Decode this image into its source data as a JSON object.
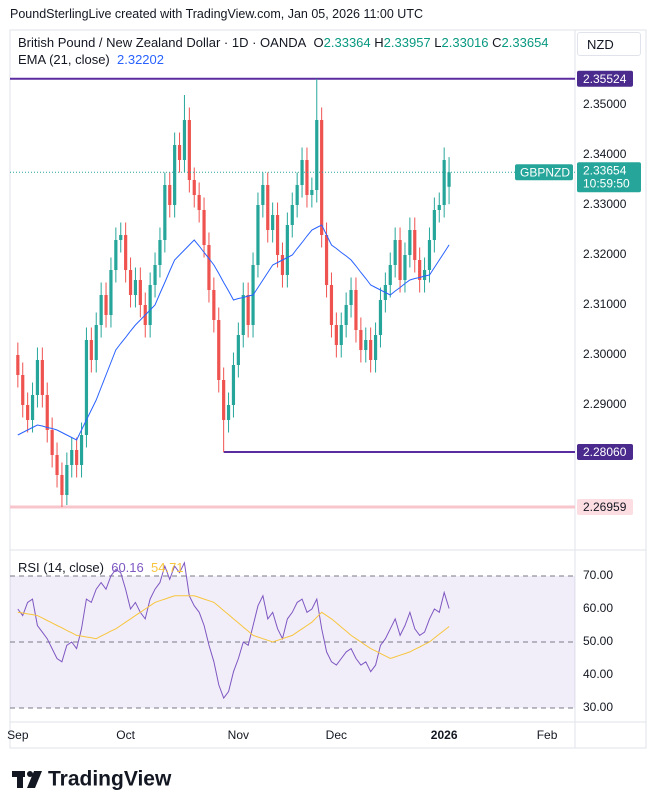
{
  "header": {
    "text": "PoundSterlingLive created with TradingView.com, Jan 05, 2026 11:00 UTC"
  },
  "chart_data": [
    {
      "type": "candlestick",
      "title": "British Pound / New Zealand Dollar · 1D · OANDA",
      "ohlc_labels": [
        "O",
        "H",
        "L",
        "C"
      ],
      "currency": "NZD",
      "symbol": "GBPNZD",
      "countdown": "10:59:50",
      "open": [
        2.3,
        2.296,
        2.29,
        2.287,
        2.292,
        2.299,
        2.292,
        2.285,
        2.28,
        2.276,
        2.272,
        2.278,
        2.281,
        2.278,
        2.284,
        2.303,
        2.299,
        2.306,
        2.312,
        2.308,
        2.317,
        2.323,
        2.324,
        2.317,
        2.312,
        2.315,
        2.31,
        2.306,
        2.314,
        2.318,
        2.323,
        2.334,
        2.33,
        2.342,
        2.339,
        2.347,
        2.335,
        2.332,
        2.329,
        2.322,
        2.313,
        2.307,
        2.295,
        2.287,
        2.29,
        2.298,
        2.304,
        2.312,
        2.306,
        2.318,
        2.33,
        2.334,
        2.325,
        2.328,
        2.32,
        2.316,
        2.326,
        2.33,
        2.334,
        2.339,
        2.332,
        2.333,
        2.347,
        2.324,
        2.314,
        2.306,
        2.302,
        2.306,
        2.31,
        2.313,
        2.305,
        2.301,
        2.303,
        2.299,
        2.304,
        2.311,
        2.314,
        2.318,
        2.323,
        2.315,
        2.32,
        2.325,
        2.319,
        2.315,
        2.317,
        2.323,
        2.329,
        2.33,
        2.33364
      ],
      "high": [
        2.3025,
        2.2985,
        2.2925,
        2.2945,
        2.3015,
        2.3015,
        2.2945,
        2.2875,
        2.2825,
        2.2785,
        2.2805,
        2.2835,
        2.2835,
        2.2865,
        2.3055,
        2.3055,
        2.3085,
        2.3145,
        2.3145,
        2.3195,
        2.3255,
        2.3265,
        2.3265,
        2.3195,
        2.3175,
        2.3175,
        2.3125,
        2.3165,
        2.3205,
        2.3255,
        2.3365,
        2.3365,
        2.3445,
        2.3445,
        2.352,
        2.3495,
        2.3375,
        2.3345,
        2.3315,
        2.3245,
        2.3155,
        2.3095,
        2.2975,
        2.2925,
        2.3005,
        2.3065,
        2.3145,
        2.3145,
        2.3205,
        2.3325,
        2.3365,
        2.3365,
        2.3305,
        2.3305,
        2.3225,
        2.3285,
        2.3325,
        2.3365,
        2.3415,
        2.3415,
        2.3355,
        2.35524,
        2.3495,
        2.3265,
        2.3165,
        2.3085,
        2.3085,
        2.3125,
        2.3155,
        2.3155,
        2.3075,
        2.3055,
        2.3055,
        2.3065,
        2.3135,
        2.3165,
        2.3205,
        2.3255,
        2.3255,
        2.3225,
        2.3275,
        2.3275,
        2.3215,
        2.3195,
        2.3255,
        2.3315,
        2.3325,
        2.3415,
        2.33957
      ],
      "low": [
        2.2935,
        2.2875,
        2.2845,
        2.2845,
        2.2895,
        2.2895,
        2.2825,
        2.2775,
        2.2735,
        2.2696,
        2.27,
        2.2755,
        2.2755,
        2.2755,
        2.2815,
        2.2965,
        2.2965,
        2.3035,
        2.3055,
        2.3055,
        2.3145,
        2.3205,
        2.3145,
        2.3095,
        2.3095,
        2.3075,
        2.3035,
        2.3035,
        2.3115,
        2.3155,
        2.3205,
        2.3275,
        2.3275,
        2.3365,
        2.3365,
        2.3325,
        2.3295,
        2.3265,
        2.3195,
        2.3105,
        2.3045,
        2.2925,
        2.2806,
        2.2845,
        2.2875,
        2.2955,
        2.3015,
        2.3035,
        2.3035,
        2.3155,
        2.3275,
        2.3225,
        2.3225,
        2.3175,
        2.3135,
        2.3135,
        2.3235,
        2.3275,
        2.3315,
        2.3295,
        2.3295,
        2.3305,
        2.3215,
        2.3115,
        2.3035,
        2.2995,
        2.2995,
        2.3035,
        2.3075,
        2.3025,
        2.2985,
        2.2985,
        2.2965,
        2.2965,
        2.3015,
        2.3085,
        2.3115,
        2.3155,
        2.3125,
        2.3125,
        2.3175,
        2.3165,
        2.3125,
        2.3125,
        2.3145,
        2.3205,
        2.3265,
        2.3275,
        2.33016
      ],
      "close": [
        2.296,
        2.29,
        2.287,
        2.292,
        2.299,
        2.292,
        2.285,
        2.28,
        2.276,
        2.272,
        2.278,
        2.281,
        2.278,
        2.284,
        2.303,
        2.299,
        2.306,
        2.312,
        2.308,
        2.317,
        2.323,
        2.324,
        2.317,
        2.312,
        2.315,
        2.31,
        2.306,
        2.314,
        2.318,
        2.323,
        2.334,
        2.33,
        2.342,
        2.339,
        2.347,
        2.335,
        2.332,
        2.329,
        2.322,
        2.313,
        2.307,
        2.295,
        2.287,
        2.29,
        2.298,
        2.304,
        2.312,
        2.306,
        2.318,
        2.33,
        2.334,
        2.325,
        2.328,
        2.32,
        2.316,
        2.326,
        2.33,
        2.334,
        2.339,
        2.332,
        2.333,
        2.347,
        2.324,
        2.314,
        2.306,
        2.302,
        2.306,
        2.31,
        2.313,
        2.305,
        2.301,
        2.303,
        2.299,
        2.304,
        2.311,
        2.314,
        2.318,
        2.323,
        2.315,
        2.32,
        2.325,
        2.319,
        2.315,
        2.317,
        2.323,
        2.329,
        2.33,
        2.339,
        2.33654
      ],
      "up_color": "#26a69a",
      "down_color": "#ef5350",
      "overlay": {
        "name": "EMA (21, close)",
        "color": "#2962ff",
        "values": [
          2.284,
          2.2845,
          2.285,
          2.2855,
          2.286,
          2.2858,
          2.2855,
          2.2853,
          2.285,
          2.2845,
          2.284,
          2.2835,
          2.283,
          2.285,
          2.287,
          2.289,
          2.291,
          2.2935,
          2.296,
          2.2985,
          2.301,
          2.3023,
          2.3035,
          2.3048,
          2.306,
          2.307,
          2.308,
          2.309,
          2.31,
          2.3123,
          2.3145,
          2.3168,
          2.319,
          2.32,
          2.321,
          2.322,
          2.323,
          2.3218,
          2.3205,
          2.3193,
          2.318,
          2.3163,
          2.3145,
          2.3128,
          2.311,
          2.3113,
          2.3115,
          2.3118,
          2.312,
          2.3135,
          2.315,
          2.3165,
          2.318,
          2.3185,
          2.319,
          2.3195,
          2.32,
          2.3213,
          2.3225,
          2.3238,
          2.325,
          2.3255,
          2.326,
          2.324,
          2.322,
          2.3213,
          2.3205,
          2.3198,
          2.319,
          2.3178,
          2.3165,
          2.3153,
          2.314,
          2.3135,
          2.313,
          2.3125,
          2.312,
          2.3128,
          2.3135,
          2.3143,
          2.315,
          2.3153,
          2.3155,
          2.3158,
          2.316,
          2.3175,
          2.319,
          2.3205,
          2.32202
        ]
      },
      "hlines": [
        {
          "value": 2.35524,
          "label": "2.35524",
          "color": "#5b2c9f"
        },
        {
          "value": 2.2806,
          "label": "2.28060",
          "color": "#5b2c9f",
          "x": 42
        },
        {
          "value": 2.26959,
          "label": "2.26959",
          "color": "#f7c5cb"
        }
      ],
      "xlim": [
        -1.6,
        113.7
      ],
      "ylim": [
        2.2614,
        2.365
      ],
      "yticks": [
        {
          "value": 2.35,
          "label": "2.35000"
        },
        {
          "value": 2.34,
          "label": "2.34000"
        },
        {
          "value": 2.33,
          "label": "2.33000"
        },
        {
          "value": 2.32,
          "label": "2.32000"
        },
        {
          "value": 2.31,
          "label": "2.31000"
        },
        {
          "value": 2.3,
          "label": "2.30000"
        },
        {
          "value": 2.29,
          "label": "2.29000"
        }
      ]
    },
    {
      "type": "line",
      "title": "RSI (14, close)",
      "series": [
        {
          "color": "#7e57c2",
          "values": [
            60,
            58,
            62,
            63,
            55,
            53,
            51,
            48,
            45,
            44,
            49,
            50,
            48,
            54,
            63,
            62,
            66,
            68,
            66,
            70,
            72,
            71,
            66,
            60,
            62,
            59,
            57,
            63,
            66,
            68,
            73,
            69,
            73,
            71,
            74,
            64,
            61,
            59,
            55,
            49,
            44,
            37,
            33,
            35,
            41,
            45,
            50,
            49,
            55,
            61,
            64,
            57,
            59,
            54,
            51,
            57,
            59,
            62,
            63,
            59,
            60,
            63,
            54,
            47,
            44,
            43,
            45,
            47,
            48,
            45,
            43,
            44,
            41,
            43,
            49,
            51,
            54,
            57,
            52,
            55,
            59,
            54,
            52,
            53,
            57,
            60,
            59,
            65,
            60.16
          ]
        },
        {
          "color": "#f7c53e",
          "values": [
            59,
            58.8,
            58.5,
            58.3,
            58,
            57.3,
            56.5,
            55.8,
            55,
            54.3,
            53.5,
            52.8,
            52,
            51.8,
            51.5,
            51.3,
            51,
            51.8,
            52.5,
            53.3,
            54,
            55,
            56,
            57,
            58,
            59,
            60,
            61,
            62,
            62.5,
            63,
            63.5,
            64,
            64,
            64,
            64,
            64,
            63.5,
            63,
            62.5,
            62,
            60.8,
            59.5,
            58.3,
            57,
            55.8,
            54.5,
            53.3,
            52,
            51.5,
            51,
            50.5,
            50,
            50.5,
            51,
            51.5,
            52,
            53,
            54,
            55,
            56,
            57.5,
            59,
            58,
            57,
            55.8,
            54.5,
            53.3,
            52,
            51,
            50,
            49,
            48,
            47.3,
            46.5,
            45.8,
            45,
            45.5,
            46,
            46.5,
            47,
            47.8,
            48.5,
            49.3,
            50,
            51.2,
            52.4,
            53.5,
            54.71
          ]
        }
      ],
      "levels": [
        70,
        50,
        30
      ],
      "band_color": "#7e57c2",
      "xlim": [
        -1.6,
        113.7
      ],
      "xticks": [
        {
          "value": 0,
          "label": "Sep"
        },
        {
          "value": 22,
          "label": "Oct"
        },
        {
          "value": 45,
          "label": "Nov"
        },
        {
          "value": 65,
          "label": "Dec"
        },
        {
          "value": 87,
          "label": "2026"
        },
        {
          "value": 108,
          "label": "Feb"
        }
      ],
      "ylim": [
        25.76,
        77.27
      ],
      "yticks": [
        {
          "value": 70,
          "label": "70.00"
        },
        {
          "value": 60,
          "label": "60.00"
        },
        {
          "value": 50,
          "label": "50.00"
        },
        {
          "value": 40,
          "label": "40.00"
        },
        {
          "value": 30,
          "label": "30.00"
        }
      ]
    }
  ],
  "footer": {
    "brand": "TradingView"
  }
}
